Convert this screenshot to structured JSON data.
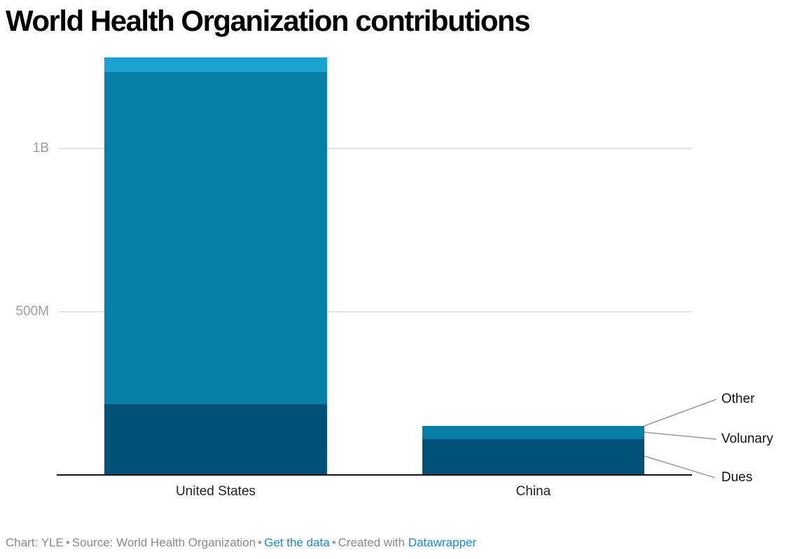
{
  "title": "World Health Organization contributions",
  "chart_data": {
    "type": "bar",
    "subtype": "stacked-column",
    "title": "World Health Organization contributions",
    "unit": "USD",
    "categories": [
      "United States",
      "China"
    ],
    "series": [
      {
        "name": "Dues",
        "color": "#015178",
        "values_millions": [
          216,
          110
        ]
      },
      {
        "name": "Volunary",
        "color": "#067ea5",
        "values_millions": [
          1017,
          40
        ]
      },
      {
        "name": "Other",
        "color": "#1ca2d2",
        "values_millions": [
          47,
          0
        ]
      }
    ],
    "y_ticks": [
      {
        "label": "500M",
        "millions": 500
      },
      {
        "label": "1B",
        "millions": 1000
      }
    ],
    "ylim_millions": [
      0,
      1285
    ],
    "grid": "horizontal",
    "legend_position": "right-connected"
  },
  "legend": {
    "items": [
      {
        "label": "Other"
      },
      {
        "label": "Volunary"
      },
      {
        "label": "Dues"
      }
    ]
  },
  "footer": {
    "chart_credit": "Chart: YLE",
    "source_text": "Source: World Health Organization",
    "get_data_link": "Get the data",
    "created_with": "Created with",
    "datawrapper_link": "Datawrapper",
    "bullet": "•"
  },
  "colors": {
    "dues": "#015178",
    "voluntary": "#067ea5",
    "other": "#1ca2d2",
    "link_blue": "#1e87d8",
    "axis_text": "#9c9c9c",
    "gridline": "#e4e4e4",
    "leader_line": "#999999"
  }
}
